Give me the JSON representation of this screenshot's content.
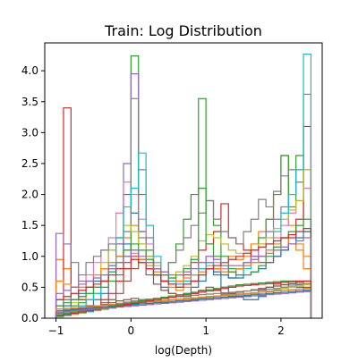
{
  "chart_data": {
    "type": "step-histogram",
    "title": "Train: Log Distribution",
    "xlabel": "log(Depth)",
    "ylabel": "",
    "xlim": [
      -1.15,
      2.55
    ],
    "ylim": [
      0,
      4.45
    ],
    "x_ticks": [
      {
        "value": -1,
        "label": "−1"
      },
      {
        "value": 0,
        "label": "0"
      },
      {
        "value": 1,
        "label": "1"
      },
      {
        "value": 2,
        "label": "2"
      }
    ],
    "y_ticks": [
      {
        "value": 0.0,
        "label": "0.0"
      },
      {
        "value": 0.5,
        "label": "0.5"
      },
      {
        "value": 1.0,
        "label": "1.0"
      },
      {
        "value": 1.5,
        "label": "1.5"
      },
      {
        "value": 2.0,
        "label": "2.0"
      },
      {
        "value": 2.5,
        "label": "2.5"
      },
      {
        "value": 3.0,
        "label": "3.0"
      },
      {
        "value": 3.5,
        "label": "3.5"
      },
      {
        "value": 4.0,
        "label": "4.0"
      }
    ],
    "bin_edges": [
      -1.0,
      -0.9,
      -0.8,
      -0.7,
      -0.6,
      -0.5,
      -0.4,
      -0.3,
      -0.2,
      -0.1,
      0.0,
      0.1,
      0.2,
      0.3,
      0.4,
      0.5,
      0.6,
      0.7,
      0.8,
      0.9,
      1.0,
      1.1,
      1.2,
      1.3,
      1.4,
      1.5,
      1.6,
      1.7,
      1.8,
      1.9,
      2.0,
      2.1,
      2.2,
      2.3,
      2.4
    ],
    "series": [
      {
        "color": "#1f77b4",
        "values": [
          0.05,
          0.1,
          0.1,
          0.15,
          0.2,
          0.3,
          0.4,
          0.7,
          1.2,
          2.0,
          1.7,
          1.4,
          1.0,
          0.7,
          0.5,
          0.4,
          0.35,
          0.4,
          0.5,
          0.6,
          0.9,
          0.7,
          0.5,
          0.4,
          0.35,
          0.3,
          0.3,
          0.35,
          0.4,
          0.45,
          0.5,
          0.55,
          0.5,
          0.45
        ]
      },
      {
        "color": "#ff7f0e",
        "values": [
          0.95,
          0.8,
          0.5,
          0.3,
          0.4,
          0.6,
          0.8,
          1.1,
          1.0,
          1.3,
          1.5,
          1.2,
          0.9,
          0.7,
          0.6,
          0.5,
          0.45,
          0.5,
          0.6,
          0.7,
          0.85,
          0.8,
          0.9,
          1.0,
          0.95,
          1.0,
          1.2,
          1.4,
          1.6,
          2.0,
          2.63,
          1.5,
          1.2,
          0.8
        ]
      },
      {
        "color": "#2ca02c",
        "values": [
          0.1,
          0.15,
          0.2,
          0.25,
          0.3,
          0.4,
          0.5,
          0.6,
          0.7,
          1.0,
          4.24,
          2.0,
          1.1,
          0.8,
          0.6,
          0.9,
          1.2,
          1.6,
          2.0,
          2.1,
          1.9,
          1.5,
          1.0,
          0.8,
          0.7,
          0.9,
          1.1,
          1.3,
          1.6,
          2.0,
          2.63,
          1.8,
          2.63,
          1.4
        ]
      },
      {
        "color": "#d62728",
        "values": [
          0.3,
          3.4,
          0.5,
          0.3,
          0.2,
          0.2,
          0.3,
          0.4,
          0.6,
          0.8,
          1.0,
          0.9,
          0.8,
          0.7,
          0.6,
          0.55,
          0.6,
          0.7,
          0.9,
          1.1,
          1.2,
          1.4,
          1.85,
          1.3,
          1.2,
          1.1,
          1.0,
          0.9,
          0.9,
          1.0,
          1.1,
          1.3,
          1.6,
          3.1
        ]
      },
      {
        "color": "#9467bd",
        "values": [
          1.37,
          1.2,
          0.9,
          0.6,
          0.5,
          0.5,
          0.6,
          0.8,
          1.2,
          2.5,
          3.95,
          2.4,
          1.3,
          0.9,
          0.7,
          0.6,
          0.55,
          0.6,
          0.7,
          0.8,
          0.9,
          0.8,
          0.7,
          0.75,
          0.8,
          0.9,
          1.0,
          1.2,
          1.4,
          1.6,
          1.8,
          2.0,
          2.4,
          3.62
        ]
      },
      {
        "color": "#8c564b",
        "values": [
          0.05,
          0.05,
          0.1,
          0.1,
          0.15,
          0.2,
          0.25,
          0.3,
          0.4,
          0.6,
          0.8,
          0.9,
          0.7,
          0.55,
          0.45,
          0.4,
          0.35,
          0.35,
          0.4,
          0.45,
          0.5,
          0.45,
          0.4,
          0.35,
          0.35,
          0.35,
          0.4,
          0.45,
          0.5,
          0.55,
          0.6,
          0.6,
          0.55,
          0.5
        ]
      },
      {
        "color": "#e377c2",
        "values": [
          0.2,
          0.3,
          0.4,
          0.5,
          0.7,
          0.9,
          1.1,
          1.3,
          1.7,
          2.2,
          2.0,
          1.6,
          1.2,
          0.9,
          0.7,
          0.6,
          0.55,
          0.6,
          0.7,
          0.9,
          1.0,
          0.9,
          0.8,
          0.75,
          0.8,
          0.85,
          0.9,
          1.0,
          1.1,
          1.3,
          1.5,
          1.7,
          1.9,
          2.1
        ]
      },
      {
        "color": "#7f7f7f",
        "values": [
          0.15,
          0.3,
          0.5,
          0.7,
          0.9,
          1.0,
          1.1,
          1.2,
          1.3,
          1.4,
          3.55,
          1.3,
          1.0,
          0.8,
          0.7,
          0.9,
          1.1,
          1.3,
          1.5,
          1.7,
          1.9,
          1.6,
          1.4,
          1.3,
          1.2,
          1.4,
          1.6,
          1.92,
          1.8,
          2.05,
          2.3,
          2.4,
          2.2,
          2.4
        ]
      },
      {
        "color": "#bcbd22",
        "values": [
          0.1,
          0.15,
          0.25,
          0.35,
          0.5,
          0.7,
          0.9,
          1.1,
          1.3,
          1.5,
          1.4,
          1.2,
          1.0,
          0.85,
          0.75,
          0.7,
          0.75,
          0.85,
          1.0,
          1.25,
          1.35,
          1.3,
          1.2,
          1.1,
          1.05,
          1.05,
          1.1,
          1.2,
          1.3,
          1.45,
          1.6,
          1.75,
          1.9,
          2.4
        ]
      },
      {
        "color": "#17becf",
        "values": [
          0.05,
          0.1,
          0.15,
          0.2,
          0.3,
          0.4,
          0.6,
          0.9,
          1.3,
          1.8,
          2.1,
          2.67,
          1.5,
          1.0,
          0.7,
          0.6,
          0.55,
          0.6,
          0.7,
          0.8,
          0.9,
          0.8,
          0.7,
          0.65,
          0.7,
          0.8,
          0.9,
          1.0,
          1.2,
          1.4,
          1.7,
          2.0,
          2.4,
          4.27
        ]
      },
      {
        "color": "#1f77b4",
        "values": [
          0.1,
          0.2,
          0.3,
          0.4,
          0.5,
          0.6,
          0.7,
          0.85,
          1.0,
          1.2,
          1.1,
          0.95,
          0.8,
          0.7,
          0.6,
          0.55,
          0.5,
          0.55,
          0.6,
          0.7,
          0.8,
          0.75,
          0.7,
          0.65,
          0.65,
          0.7,
          0.75,
          0.8,
          0.9,
          1.0,
          1.1,
          1.2,
          1.3,
          1.4
        ]
      },
      {
        "color": "#ff7f0e",
        "values": [
          0.6,
          0.55,
          0.5,
          0.5,
          0.6,
          0.7,
          0.8,
          0.9,
          1.0,
          1.1,
          1.05,
          0.95,
          0.85,
          0.75,
          0.7,
          0.65,
          0.6,
          0.65,
          0.7,
          0.75,
          0.8,
          0.8,
          0.75,
          0.75,
          0.8,
          0.85,
          0.9,
          1.0,
          1.1,
          1.2,
          1.3,
          1.2,
          1.1,
          1.0
        ]
      },
      {
        "color": "#2ca02c",
        "values": [
          0.2,
          0.25,
          0.3,
          0.35,
          0.4,
          0.5,
          0.6,
          0.75,
          0.9,
          1.1,
          1.2,
          1.1,
          0.95,
          0.8,
          0.7,
          0.65,
          0.7,
          0.8,
          0.95,
          3.55,
          1.2,
          1.0,
          0.85,
          0.75,
          0.7,
          0.7,
          0.75,
          0.85,
          1.0,
          1.15,
          1.3,
          1.4,
          1.5,
          1.6
        ]
      },
      {
        "color": "#d62728",
        "values": [
          0.3,
          0.35,
          0.4,
          0.45,
          0.5,
          0.55,
          0.6,
          0.7,
          0.8,
          0.9,
          0.95,
          0.9,
          0.8,
          0.7,
          0.6,
          0.55,
          0.5,
          0.55,
          0.6,
          0.7,
          0.8,
          0.85,
          0.9,
          0.95,
          1.0,
          1.05,
          1.1,
          1.15,
          1.2,
          1.25,
          1.3,
          1.35,
          1.4,
          1.45
        ]
      },
      {
        "color": "#9467bd",
        "values": [
          0.4,
          0.45,
          0.5,
          0.55,
          0.6,
          0.65,
          0.7,
          0.8,
          0.9,
          1.0,
          1.1,
          1.0,
          0.9,
          0.8,
          0.75,
          0.7,
          0.7,
          0.75,
          0.8,
          0.9,
          1.0,
          0.95,
          0.9,
          0.85,
          0.85,
          0.9,
          0.95,
          1.0,
          1.05,
          1.1,
          1.15,
          1.2,
          1.25,
          1.3
        ]
      },
      {
        "color": "#8c564b",
        "values": [
          0.1,
          0.12,
          0.14,
          0.16,
          0.18,
          0.2,
          0.22,
          0.25,
          0.28,
          0.3,
          0.32,
          0.3,
          0.28,
          0.26,
          0.25,
          0.25,
          0.26,
          0.28,
          0.3,
          0.32,
          0.34,
          0.36,
          0.38,
          0.4,
          0.42,
          0.44,
          0.46,
          0.48,
          0.5,
          0.52,
          0.54,
          0.56,
          0.58,
          0.6
        ]
      },
      {
        "color": "#e377c2",
        "values": [
          0.05,
          0.07,
          0.09,
          0.11,
          0.13,
          0.15,
          0.17,
          0.19,
          0.21,
          0.23,
          0.25,
          0.26,
          0.27,
          0.28,
          0.29,
          0.3,
          0.31,
          0.32,
          0.33,
          0.34,
          0.35,
          0.36,
          0.37,
          0.38,
          0.39,
          0.4,
          0.41,
          0.42,
          0.43,
          0.44,
          0.45,
          0.46,
          0.47,
          0.48
        ]
      },
      {
        "color": "#7f7f7f",
        "values": [
          0.08,
          0.1,
          0.12,
          0.14,
          0.16,
          0.18,
          0.2,
          0.22,
          0.24,
          0.26,
          0.28,
          0.3,
          0.31,
          0.32,
          0.33,
          0.34,
          0.35,
          0.36,
          0.37,
          0.38,
          0.39,
          0.4,
          0.41,
          0.42,
          0.43,
          0.44,
          0.45,
          0.46,
          0.47,
          0.48,
          0.5,
          0.52,
          0.54,
          0.56
        ]
      },
      {
        "color": "#bcbd22",
        "values": [
          0.02,
          0.04,
          0.06,
          0.08,
          0.1,
          0.12,
          0.14,
          0.16,
          0.18,
          0.2,
          0.22,
          0.24,
          0.26,
          0.27,
          0.28,
          0.29,
          0.3,
          0.31,
          0.32,
          0.33,
          0.34,
          0.35,
          0.36,
          0.37,
          0.38,
          0.39,
          0.4,
          0.42,
          0.44,
          0.46,
          0.48,
          0.5,
          0.52,
          0.54
        ]
      },
      {
        "color": "#17becf",
        "values": [
          0.03,
          0.05,
          0.07,
          0.09,
          0.11,
          0.13,
          0.15,
          0.17,
          0.19,
          0.21,
          0.23,
          0.25,
          0.27,
          0.28,
          0.29,
          0.3,
          0.31,
          0.32,
          0.33,
          0.34,
          0.35,
          0.36,
          0.37,
          0.38,
          0.39,
          0.4,
          0.41,
          0.42,
          0.43,
          0.44,
          0.45,
          0.46,
          0.47,
          0.48
        ]
      },
      {
        "color": "#1f77b4",
        "values": [
          0.12,
          0.13,
          0.14,
          0.15,
          0.16,
          0.17,
          0.18,
          0.19,
          0.2,
          0.21,
          0.22,
          0.23,
          0.24,
          0.25,
          0.26,
          0.27,
          0.28,
          0.29,
          0.3,
          0.31,
          0.32,
          0.33,
          0.34,
          0.35,
          0.36,
          0.37,
          0.38,
          0.39,
          0.4,
          0.41,
          0.42,
          0.43,
          0.44,
          0.45
        ]
      },
      {
        "color": "#ff7f0e",
        "values": [
          0.15,
          0.16,
          0.17,
          0.18,
          0.19,
          0.2,
          0.21,
          0.22,
          0.23,
          0.24,
          0.25,
          0.26,
          0.27,
          0.28,
          0.29,
          0.3,
          0.31,
          0.32,
          0.33,
          0.34,
          0.35,
          0.36,
          0.37,
          0.38,
          0.39,
          0.4,
          0.41,
          0.42,
          0.43,
          0.44,
          0.45,
          0.46,
          0.47,
          0.48
        ]
      },
      {
        "color": "#2ca02c",
        "values": [
          0.06,
          0.08,
          0.1,
          0.12,
          0.14,
          0.16,
          0.18,
          0.2,
          0.22,
          0.24,
          0.26,
          0.28,
          0.3,
          0.32,
          0.34,
          0.36,
          0.38,
          0.4,
          0.42,
          0.44,
          0.46,
          0.48,
          0.5,
          0.52,
          0.54,
          0.55,
          0.56,
          0.57,
          0.58,
          0.59,
          0.6,
          0.6,
          0.6,
          0.6
        ]
      },
      {
        "color": "#d62728",
        "values": [
          0.04,
          0.06,
          0.08,
          0.1,
          0.12,
          0.14,
          0.16,
          0.18,
          0.2,
          0.22,
          0.24,
          0.26,
          0.28,
          0.3,
          0.32,
          0.34,
          0.36,
          0.38,
          0.4,
          0.42,
          0.44,
          0.46,
          0.48,
          0.5,
          0.52,
          0.53,
          0.54,
          0.55,
          0.56,
          0.57,
          0.58,
          0.59,
          0.6,
          0.6
        ]
      },
      {
        "color": "#9467bd",
        "values": [
          0.1,
          0.11,
          0.12,
          0.13,
          0.14,
          0.15,
          0.16,
          0.17,
          0.18,
          0.19,
          0.2,
          0.21,
          0.22,
          0.23,
          0.24,
          0.25,
          0.26,
          0.27,
          0.28,
          0.29,
          0.3,
          0.31,
          0.32,
          0.33,
          0.34,
          0.35,
          0.36,
          0.37,
          0.38,
          0.39,
          0.4,
          0.41,
          0.42,
          0.43
        ]
      }
    ]
  }
}
